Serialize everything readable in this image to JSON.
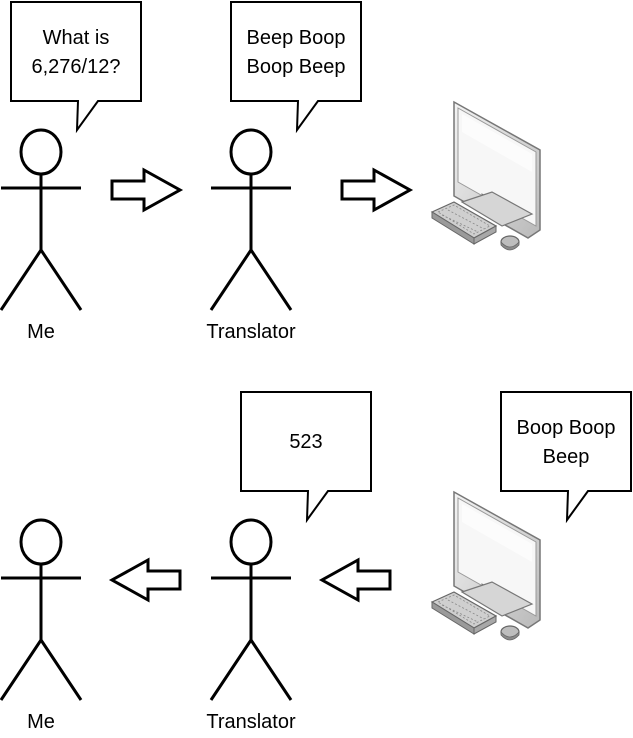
{
  "top_row": {
    "me_label": "Me",
    "translator_label": "Translator",
    "me_bubble": [
      "What is",
      "6,276/12?"
    ],
    "translator_bubble": [
      "Beep Boop",
      "Boop Beep"
    ]
  },
  "bottom_row": {
    "me_label": "Me",
    "translator_label": "Translator",
    "translator_bubble": [
      "523"
    ],
    "computer_bubble": [
      "Boop Boop",
      "Beep"
    ]
  },
  "colors": {
    "stroke": "#000000",
    "fill": "#ffffff",
    "computer_light": "#eeeeee",
    "computer_mid": "#bdbdbd",
    "computer_dark": "#8a8a8a"
  },
  "icons": [
    "stick-figure",
    "right-arrow",
    "left-arrow",
    "desktop-computer-icon",
    "speech-bubble"
  ]
}
